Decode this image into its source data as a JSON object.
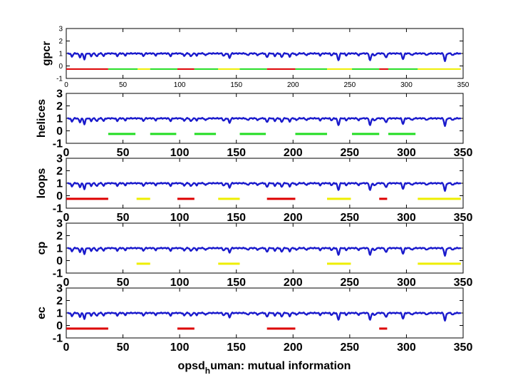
{
  "figure": {
    "xlabel_main": "opsd",
    "xlabel_sub": "h",
    "xlabel_rest": "uman: mutual information"
  },
  "chart_data": [
    {
      "type": "line",
      "ylabel": "gpcr",
      "xlim": [
        0,
        350
      ],
      "ylim": [
        -1,
        3
      ],
      "xticks": [
        0,
        50,
        100,
        150,
        200,
        250,
        300,
        350
      ],
      "yticks": [
        -1,
        0,
        1,
        2,
        3
      ],
      "mi_series_color": "#1a1acc",
      "segments": [
        {
          "start": 0,
          "end": 37,
          "y": -0.25,
          "color": "#dd0000"
        },
        {
          "start": 37,
          "end": 63,
          "y": -0.25,
          "color": "#22dd22"
        },
        {
          "start": 63,
          "end": 74,
          "y": -0.25,
          "color": "#eeee00"
        },
        {
          "start": 74,
          "end": 98,
          "y": -0.25,
          "color": "#22dd22"
        },
        {
          "start": 98,
          "end": 113,
          "y": -0.25,
          "color": "#dd0000"
        },
        {
          "start": 113,
          "end": 134,
          "y": -0.25,
          "color": "#22dd22"
        },
        {
          "start": 134,
          "end": 153,
          "y": -0.25,
          "color": "#eeee00"
        },
        {
          "start": 153,
          "end": 177,
          "y": -0.25,
          "color": "#22dd22"
        },
        {
          "start": 177,
          "end": 202,
          "y": -0.25,
          "color": "#dd0000"
        },
        {
          "start": 202,
          "end": 230,
          "y": -0.25,
          "color": "#22dd22"
        },
        {
          "start": 230,
          "end": 252,
          "y": -0.25,
          "color": "#eeee00"
        },
        {
          "start": 252,
          "end": 276,
          "y": -0.25,
          "color": "#22dd22"
        },
        {
          "start": 276,
          "end": 284,
          "y": -0.25,
          "color": "#dd0000"
        },
        {
          "start": 284,
          "end": 310,
          "y": -0.25,
          "color": "#22dd22"
        },
        {
          "start": 310,
          "end": 348,
          "y": -0.25,
          "color": "#eeee00"
        }
      ]
    },
    {
      "type": "line",
      "ylabel": "helices",
      "xlim": [
        0,
        350
      ],
      "ylim": [
        -1,
        3
      ],
      "xticks": [
        0,
        50,
        100,
        150,
        200,
        250,
        300,
        350
      ],
      "yticks": [
        -1,
        0,
        1,
        2,
        3
      ],
      "mi_series_color": "#1a1acc",
      "segments": [
        {
          "start": 37,
          "end": 61,
          "y": -0.25,
          "color": "#22dd22"
        },
        {
          "start": 74,
          "end": 97,
          "y": -0.25,
          "color": "#22dd22"
        },
        {
          "start": 113,
          "end": 132,
          "y": -0.25,
          "color": "#22dd22"
        },
        {
          "start": 153,
          "end": 176,
          "y": -0.25,
          "color": "#22dd22"
        },
        {
          "start": 202,
          "end": 230,
          "y": -0.25,
          "color": "#22dd22"
        },
        {
          "start": 252,
          "end": 276,
          "y": -0.25,
          "color": "#22dd22"
        },
        {
          "start": 284,
          "end": 308,
          "y": -0.25,
          "color": "#22dd22"
        }
      ]
    },
    {
      "type": "line",
      "ylabel": "loops",
      "xlim": [
        0,
        350
      ],
      "ylim": [
        -1,
        3
      ],
      "xticks": [
        0,
        50,
        100,
        150,
        200,
        250,
        300,
        350
      ],
      "yticks": [
        -1,
        0,
        1,
        2,
        3
      ],
      "mi_series_color": "#1a1acc",
      "segments": [
        {
          "start": 0,
          "end": 37,
          "y": -0.25,
          "color": "#dd0000"
        },
        {
          "start": 62,
          "end": 74,
          "y": -0.25,
          "color": "#eeee00"
        },
        {
          "start": 98,
          "end": 113,
          "y": -0.25,
          "color": "#dd0000"
        },
        {
          "start": 134,
          "end": 153,
          "y": -0.25,
          "color": "#eeee00"
        },
        {
          "start": 177,
          "end": 202,
          "y": -0.25,
          "color": "#dd0000"
        },
        {
          "start": 230,
          "end": 251,
          "y": -0.25,
          "color": "#eeee00"
        },
        {
          "start": 276,
          "end": 283,
          "y": -0.25,
          "color": "#dd0000"
        },
        {
          "start": 310,
          "end": 348,
          "y": -0.25,
          "color": "#eeee00"
        }
      ]
    },
    {
      "type": "line",
      "ylabel": "cp",
      "xlim": [
        0,
        350
      ],
      "ylim": [
        -1,
        3
      ],
      "xticks": [
        0,
        50,
        100,
        150,
        200,
        250,
        300,
        350
      ],
      "yticks": [
        -1,
        0,
        1,
        2,
        3
      ],
      "mi_series_color": "#1a1acc",
      "segments": [
        {
          "start": 62,
          "end": 74,
          "y": -0.25,
          "color": "#eeee00"
        },
        {
          "start": 134,
          "end": 153,
          "y": -0.25,
          "color": "#eeee00"
        },
        {
          "start": 230,
          "end": 251,
          "y": -0.25,
          "color": "#eeee00"
        },
        {
          "start": 310,
          "end": 348,
          "y": -0.25,
          "color": "#eeee00"
        }
      ]
    },
    {
      "type": "line",
      "ylabel": "ec",
      "xlim": [
        0,
        350
      ],
      "ylim": [
        -1,
        3
      ],
      "xticks": [
        0,
        50,
        100,
        150,
        200,
        250,
        300,
        350
      ],
      "yticks": [
        -1,
        0,
        1,
        2,
        3
      ],
      "mi_series_color": "#1a1acc",
      "segments": [
        {
          "start": 0,
          "end": 37,
          "y": -0.25,
          "color": "#dd0000"
        },
        {
          "start": 98,
          "end": 113,
          "y": -0.25,
          "color": "#dd0000"
        },
        {
          "start": 177,
          "end": 202,
          "y": -0.25,
          "color": "#dd0000"
        },
        {
          "start": 276,
          "end": 283,
          "y": -0.25,
          "color": "#dd0000"
        }
      ]
    }
  ],
  "mi_series": {
    "baseline": 1.0,
    "x_max": 348,
    "dips": [
      {
        "x": 5,
        "depth": 0.25
      },
      {
        "x": 12,
        "depth": 0.3
      },
      {
        "x": 16,
        "depth": 0.45
      },
      {
        "x": 22,
        "depth": 0.2
      },
      {
        "x": 27,
        "depth": 0.25
      },
      {
        "x": 33,
        "depth": 0.2
      },
      {
        "x": 45,
        "depth": 0.2
      },
      {
        "x": 52,
        "depth": 0.15
      },
      {
        "x": 68,
        "depth": 0.2
      },
      {
        "x": 79,
        "depth": 0.15
      },
      {
        "x": 92,
        "depth": 0.2
      },
      {
        "x": 104,
        "depth": 0.2
      },
      {
        "x": 110,
        "depth": 0.25
      },
      {
        "x": 115,
        "depth": 0.15
      },
      {
        "x": 123,
        "depth": 0.15
      },
      {
        "x": 139,
        "depth": 0.2
      },
      {
        "x": 144,
        "depth": 0.35
      },
      {
        "x": 160,
        "depth": 0.15
      },
      {
        "x": 169,
        "depth": 0.15
      },
      {
        "x": 177,
        "depth": 0.3
      },
      {
        "x": 184,
        "depth": 0.2
      },
      {
        "x": 190,
        "depth": 0.3
      },
      {
        "x": 197,
        "depth": 0.25
      },
      {
        "x": 203,
        "depth": 0.15
      },
      {
        "x": 212,
        "depth": 0.15
      },
      {
        "x": 224,
        "depth": 0.15
      },
      {
        "x": 234,
        "depth": 0.15
      },
      {
        "x": 240,
        "depth": 0.55
      },
      {
        "x": 247,
        "depth": 0.15
      },
      {
        "x": 258,
        "depth": 0.15
      },
      {
        "x": 268,
        "depth": 0.55
      },
      {
        "x": 272,
        "depth": 0.2
      },
      {
        "x": 282,
        "depth": 0.35
      },
      {
        "x": 297,
        "depth": 0.45
      },
      {
        "x": 305,
        "depth": 0.15
      },
      {
        "x": 318,
        "depth": 0.15
      },
      {
        "x": 334,
        "depth": 0.6
      },
      {
        "x": 341,
        "depth": 0.15
      }
    ]
  }
}
